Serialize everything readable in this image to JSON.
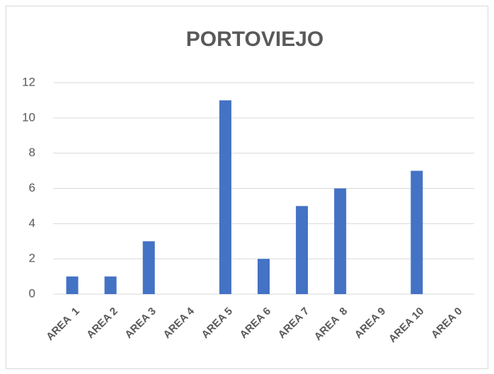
{
  "chart_data": {
    "type": "bar",
    "title": "PORTOVIEJO",
    "categories": [
      "AREA  1",
      "AREA 2",
      "AREA 3",
      "AREA 4",
      "AREA 5",
      "AREA 6",
      "AREA 7",
      "AREA  8",
      "AREA 9",
      "AREA 10",
      "AREA 0"
    ],
    "values": [
      1,
      1,
      3,
      0,
      11,
      2,
      5,
      6,
      0,
      7,
      0
    ],
    "color": "#4472c4",
    "ylim": [
      0,
      12
    ],
    "yticks": [
      0,
      2,
      4,
      6,
      8,
      10,
      12
    ],
    "grid": true
  }
}
